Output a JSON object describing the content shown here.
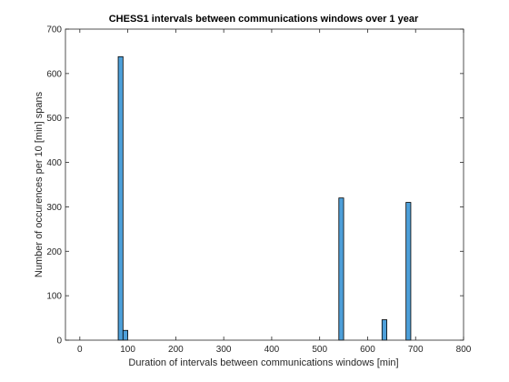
{
  "chart_data": {
    "type": "bar",
    "title": "CHESS1 intervals between communications windows over 1 year",
    "xlabel": "Duration of intervals between communications windows [min]",
    "ylabel": "Number of occurences per 10 [min] spans",
    "xlim": [
      -30,
      800
    ],
    "ylim": [
      0,
      700
    ],
    "xticks": [
      0,
      100,
      200,
      300,
      400,
      500,
      600,
      700,
      800
    ],
    "yticks": [
      0,
      100,
      200,
      300,
      400,
      500,
      600,
      700
    ],
    "bin_width": 10,
    "bars": [
      {
        "x": 85,
        "value": 638
      },
      {
        "x": 95,
        "value": 22
      },
      {
        "x": 545,
        "value": 320
      },
      {
        "x": 635,
        "value": 46
      },
      {
        "x": 685,
        "value": 310
      }
    ],
    "grid": false,
    "bar_color": "#4d9fd9",
    "bar_edge_color": "#000000"
  }
}
